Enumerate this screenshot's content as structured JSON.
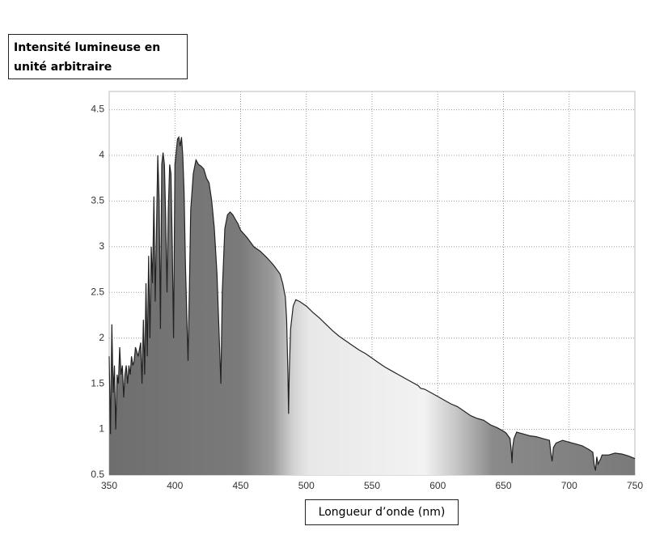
{
  "chart_data": {
    "type": "area",
    "y_label": "Intensité lumineuse en unité arbitraire",
    "x_label": "Longueur d’onde (nm)",
    "x": [
      350,
      351,
      352,
      353,
      354,
      355,
      356,
      357,
      358,
      359,
      360,
      361,
      362,
      363,
      364,
      365,
      366,
      367,
      368,
      369,
      370,
      372,
      374,
      375,
      376,
      377,
      378,
      379,
      380,
      381,
      382,
      383,
      384,
      385,
      386,
      387,
      388,
      389,
      390,
      391,
      392,
      393,
      394,
      395,
      396,
      397,
      398,
      399,
      400,
      402,
      403,
      404,
      405,
      406,
      407,
      408,
      410,
      411,
      412,
      414,
      416,
      418,
      420,
      422,
      424,
      426,
      428,
      430,
      432,
      434,
      435,
      436,
      438,
      440,
      442,
      444,
      446,
      448,
      450,
      455,
      460,
      465,
      470,
      475,
      480,
      482,
      484,
      485,
      486,
      486.5,
      487,
      488,
      490,
      492,
      495,
      500,
      505,
      510,
      515,
      520,
      525,
      530,
      535,
      540,
      545,
      550,
      555,
      560,
      565,
      570,
      575,
      580,
      585,
      587,
      590,
      595,
      600,
      605,
      610,
      615,
      620,
      625,
      630,
      635,
      640,
      645,
      650,
      652,
      655,
      656,
      656.5,
      657,
      658,
      660,
      665,
      670,
      675,
      680,
      685,
      686,
      687,
      688,
      690,
      695,
      700,
      705,
      710,
      715,
      718,
      719,
      720,
      721,
      722,
      724,
      725,
      730,
      735,
      740,
      745,
      750
    ],
    "values": [
      1.8,
      0.95,
      2.15,
      1.4,
      1.7,
      1.0,
      1.6,
      1.5,
      1.9,
      1.6,
      1.7,
      1.35,
      1.6,
      1.7,
      1.5,
      1.7,
      1.6,
      1.8,
      1.7,
      1.75,
      1.9,
      1.8,
      1.95,
      1.5,
      2.2,
      1.6,
      2.6,
      1.8,
      2.9,
      2.0,
      3.0,
      2.6,
      3.55,
      2.4,
      3.2,
      4.0,
      3.5,
      2.1,
      3.9,
      4.03,
      3.9,
      3.3,
      2.5,
      3.4,
      3.9,
      3.8,
      3.0,
      2.0,
      3.9,
      4.18,
      4.2,
      4.1,
      4.2,
      4.0,
      3.6,
      2.8,
      1.75,
      2.5,
      3.4,
      3.8,
      3.95,
      3.9,
      3.88,
      3.85,
      3.75,
      3.7,
      3.5,
      3.2,
      2.7,
      1.9,
      1.5,
      2.5,
      3.2,
      3.35,
      3.38,
      3.35,
      3.3,
      3.25,
      3.18,
      3.1,
      3.0,
      2.95,
      2.88,
      2.8,
      2.7,
      2.6,
      2.45,
      2.2,
      1.6,
      1.17,
      1.6,
      2.1,
      2.35,
      2.42,
      2.4,
      2.35,
      2.28,
      2.22,
      2.15,
      2.08,
      2.02,
      1.97,
      1.92,
      1.87,
      1.83,
      1.78,
      1.73,
      1.68,
      1.64,
      1.6,
      1.56,
      1.52,
      1.48,
      1.45,
      1.44,
      1.4,
      1.36,
      1.32,
      1.28,
      1.25,
      1.2,
      1.15,
      1.12,
      1.1,
      1.05,
      1.02,
      0.98,
      0.96,
      0.9,
      0.75,
      0.63,
      0.8,
      0.9,
      0.97,
      0.95,
      0.93,
      0.92,
      0.9,
      0.88,
      0.75,
      0.65,
      0.8,
      0.85,
      0.88,
      0.86,
      0.84,
      0.82,
      0.78,
      0.75,
      0.62,
      0.55,
      0.7,
      0.62,
      0.68,
      0.72,
      0.72,
      0.74,
      0.73,
      0.71,
      0.68
    ],
    "color": "#222222",
    "xlim": [
      350,
      750
    ],
    "xticks": [
      350,
      400,
      450,
      500,
      550,
      600,
      650,
      700,
      750
    ],
    "ylim": [
      0.5,
      4.7
    ],
    "yticks": [
      0.5,
      1,
      1.5,
      2,
      2.5,
      3,
      3.5,
      4,
      4.5
    ],
    "grid": true
  }
}
